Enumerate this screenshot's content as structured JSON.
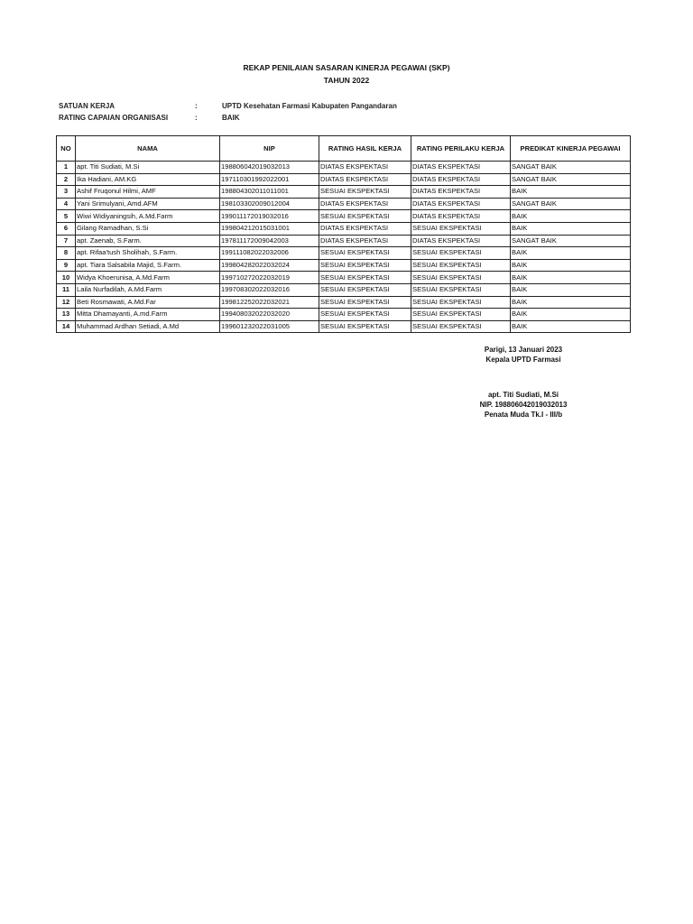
{
  "title": "REKAP PENILAIAN SASARAN KINERJA PEGAWAI (SKP)",
  "subtitle": "TAHUN 2022",
  "info": [
    {
      "label": "SATUAN KERJA",
      "sep": ":",
      "value": "UPTD Kesehatan Farmasi Kabupaten Pangandaran"
    },
    {
      "label": "RATING CAPAIAN ORGANISASI",
      "sep": ":",
      "value": "BAIK"
    }
  ],
  "table": {
    "headers": [
      "NO",
      "NAMA",
      "NIP",
      "RATING HASIL KERJA",
      "RATING PERILAKU KERJA",
      "PREDIKAT KINERJA PEGAWAI"
    ],
    "rows": [
      [
        "1",
        "apt. Titi Sudiati, M.Si",
        "198806042019032013",
        "DIATAS EKSPEKTASI",
        "DIATAS EKSPEKTASI",
        "SANGAT BAIK"
      ],
      [
        "2",
        "Ika Hadiani, AM.KG",
        "197110301992022001",
        "DIATAS EKSPEKTASI",
        "DIATAS EKSPEKTASI",
        "SANGAT BAIK"
      ],
      [
        "3",
        "Ashif Fruqonul Hilmi, AMF",
        "198804302011011001",
        "SESUAI EKSPEKTASI",
        "DIATAS EKSPEKTASI",
        "BAIK"
      ],
      [
        "4",
        "Yani Srimulyani, Amd.AFM",
        "198103302009012004",
        "DIATAS EKSPEKTASI",
        "DIATAS EKSPEKTASI",
        "SANGAT BAIK"
      ],
      [
        "5",
        "Wiwi Widiyaningsih, A.Md.Farm",
        "199011172019032016",
        "SESUAI EKSPEKTASI",
        "DIATAS EKSPEKTASI",
        "BAIK"
      ],
      [
        "6",
        "Gilang Ramadhan, S.Si",
        "199804212015031001",
        "DIATAS EKSPEKTASI",
        "SESUAI EKSPEKTASI",
        "BAIK"
      ],
      [
        "7",
        "apt. Zaenab, S.Farm.",
        "197811172009042003",
        "DIATAS EKSPEKTASI",
        "DIATAS EKSPEKTASI",
        "SANGAT BAIK"
      ],
      [
        "8",
        "apt. Rifaa'tush Sholihah, S.Farm.",
        "199111082022032006",
        "SESUAI EKSPEKTASI",
        "SESUAI EKSPEKTASI",
        "BAIK"
      ],
      [
        "9",
        "apt. Tiara Salsabila Majid, S.Farm.",
        "199804282022032024",
        "SESUAI EKSPEKTASI",
        "SESUAI EKSPEKTASI",
        "BAIK"
      ],
      [
        "10",
        "Widya Khoerunisa, A.Md.Farm",
        "199710272022032019",
        "SESUAI EKSPEKTASI",
        "SESUAI EKSPEKTASI",
        "BAIK"
      ],
      [
        "11",
        "Laila Nurfadilah, A.Md.Farm",
        "199708302022032016",
        "SESUAI EKSPEKTASI",
        "SESUAI EKSPEKTASI",
        "BAIK"
      ],
      [
        "12",
        "Beti Rosmawati, A.Md.Far",
        "199812252022032021",
        "SESUAI EKSPEKTASI",
        "SESUAI EKSPEKTASI",
        "BAIK"
      ],
      [
        "13",
        "Mitta Dhamayanti, A.md.Farm",
        "199408032022032020",
        "SESUAI EKSPEKTASI",
        "SESUAI EKSPEKTASI",
        "BAIK"
      ],
      [
        "14",
        "Muhammad Ardhan Setiadi, A.Md",
        "199601232022031005",
        "SESUAI EKSPEKTASI",
        "SESUAI EKSPEKTASI",
        "BAIK"
      ]
    ]
  },
  "signature": {
    "place_date": "Parigi, 13 Januari 2023",
    "position": "Kepala UPTD Farmasi",
    "name": "apt. Titi Sudiati, M.Si",
    "nip": "NIP. 198806042019032013",
    "rank": "Penata Muda Tk.I - III/b"
  }
}
